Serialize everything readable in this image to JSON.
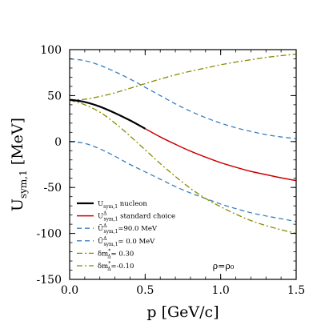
{
  "chart_data": {
    "type": "line",
    "xlabel": "p [GeV/c]",
    "ylabel": "U",
    "ylabel_sub": "sym,1",
    "ylabel_unit": "[MeV]",
    "xlim": [
      0.0,
      1.5
    ],
    "ylim": [
      -150,
      100
    ],
    "x_ticks": [
      0.0,
      0.5,
      1.0,
      1.5
    ],
    "x_tick_labels": [
      "0.0",
      "0.5",
      "1.0",
      "1.5"
    ],
    "y_ticks": [
      -150,
      -100,
      -50,
      0,
      50,
      100
    ],
    "y_tick_labels": [
      "-150",
      "-100",
      "-50",
      "0",
      "50",
      "100"
    ],
    "grid": false,
    "legend_position": "bottom-left",
    "annotation": "ρ=ρ₀",
    "series": [
      {
        "name": "U_sym,1 nucleon",
        "legend_main": "U",
        "legend_sub": "sym,1",
        "legend_rest": " nucleon",
        "color": "#000000",
        "dash": "solid",
        "width": 2.2,
        "x": [
          0.0,
          0.1,
          0.2,
          0.3,
          0.4,
          0.5
        ],
        "y": [
          45.5,
          43,
          38,
          31,
          23,
          14
        ]
      },
      {
        "name": "U^Δ_sym,1 standard choice",
        "legend_main": "U",
        "legend_sup": "Δ",
        "legend_sub": "sym,1",
        "legend_rest": " standard choice",
        "color": "#cc0000",
        "dash": "solid",
        "width": 1.5,
        "x": [
          0.0,
          0.1,
          0.2,
          0.3,
          0.4,
          0.5,
          0.6,
          0.7,
          0.8,
          0.9,
          1.0,
          1.1,
          1.2,
          1.3,
          1.4,
          1.5
        ],
        "y": [
          45.5,
          43,
          38,
          31,
          23,
          14,
          5,
          -3,
          -10.5,
          -17,
          -23,
          -28,
          -32.5,
          -36,
          -39.5,
          -42.5
        ]
      },
      {
        "name": "Ũ^Δ_sym,1=90.0 MeV",
        "legend_main": "Ũ",
        "legend_sup": "Δ",
        "legend_sub": "sym,1",
        "legend_rest": "=90.0 MeV",
        "color": "#3a7fc0",
        "dash": "6,4",
        "width": 1.3,
        "x": [
          0.0,
          0.1,
          0.2,
          0.3,
          0.4,
          0.5,
          0.6,
          0.7,
          0.8,
          0.9,
          1.0,
          1.1,
          1.2,
          1.3,
          1.4,
          1.5
        ],
        "y": [
          90,
          88,
          83,
          76,
          68,
          59,
          50,
          41,
          33,
          26,
          20,
          15,
          11,
          7.5,
          5,
          3
        ]
      },
      {
        "name": "Ũ^Δ_sym,1= 0.0 MeV",
        "legend_main": "Ũ",
        "legend_sup": "Δ",
        "legend_sub": "sym,1",
        "legend_rest": "= 0.0 MeV",
        "color": "#3a7fc0",
        "dash": "6,4",
        "width": 1.3,
        "x": [
          0.0,
          0.1,
          0.2,
          0.3,
          0.4,
          0.5,
          0.6,
          0.7,
          0.8,
          0.9,
          1.0,
          1.1,
          1.2,
          1.3,
          1.4,
          1.5
        ],
        "y": [
          0,
          -2,
          -8,
          -16,
          -25,
          -33,
          -41,
          -49,
          -56,
          -62,
          -68,
          -73,
          -77.5,
          -81,
          -84,
          -87
        ]
      },
      {
        "name": "δm*_Δ= 0.30",
        "legend_main": "δm",
        "legend_sup": "*",
        "legend_sub": "Δ",
        "legend_rest": "= 0.30",
        "color": "#8a8a00",
        "dash": "7,3,2,3",
        "width": 1.3,
        "x": [
          0.0,
          0.1,
          0.2,
          0.3,
          0.4,
          0.5,
          0.6,
          0.7,
          0.8,
          0.9,
          1.0,
          1.1,
          1.2,
          1.3,
          1.4,
          1.5
        ],
        "y": [
          45,
          46,
          49,
          53,
          58,
          63,
          68,
          72.5,
          76.5,
          80,
          83.5,
          86.5,
          89,
          91.5,
          93.5,
          95
        ]
      },
      {
        "name": "δm*_Δ=-0.10",
        "legend_main": "δm",
        "legend_sup": "*",
        "legend_sub": "Δ",
        "legend_rest": "=-0.10",
        "color": "#8a8a00",
        "dash": "7,3,2,3",
        "width": 1.3,
        "x": [
          0.0,
          0.1,
          0.2,
          0.3,
          0.4,
          0.5,
          0.6,
          0.7,
          0.8,
          0.9,
          1.0,
          1.1,
          1.2,
          1.3,
          1.4,
          1.5
        ],
        "y": [
          45,
          40,
          32,
          20,
          6,
          -9,
          -24,
          -38,
          -51,
          -62,
          -71,
          -79,
          -86,
          -91.5,
          -96,
          -100
        ]
      }
    ]
  }
}
